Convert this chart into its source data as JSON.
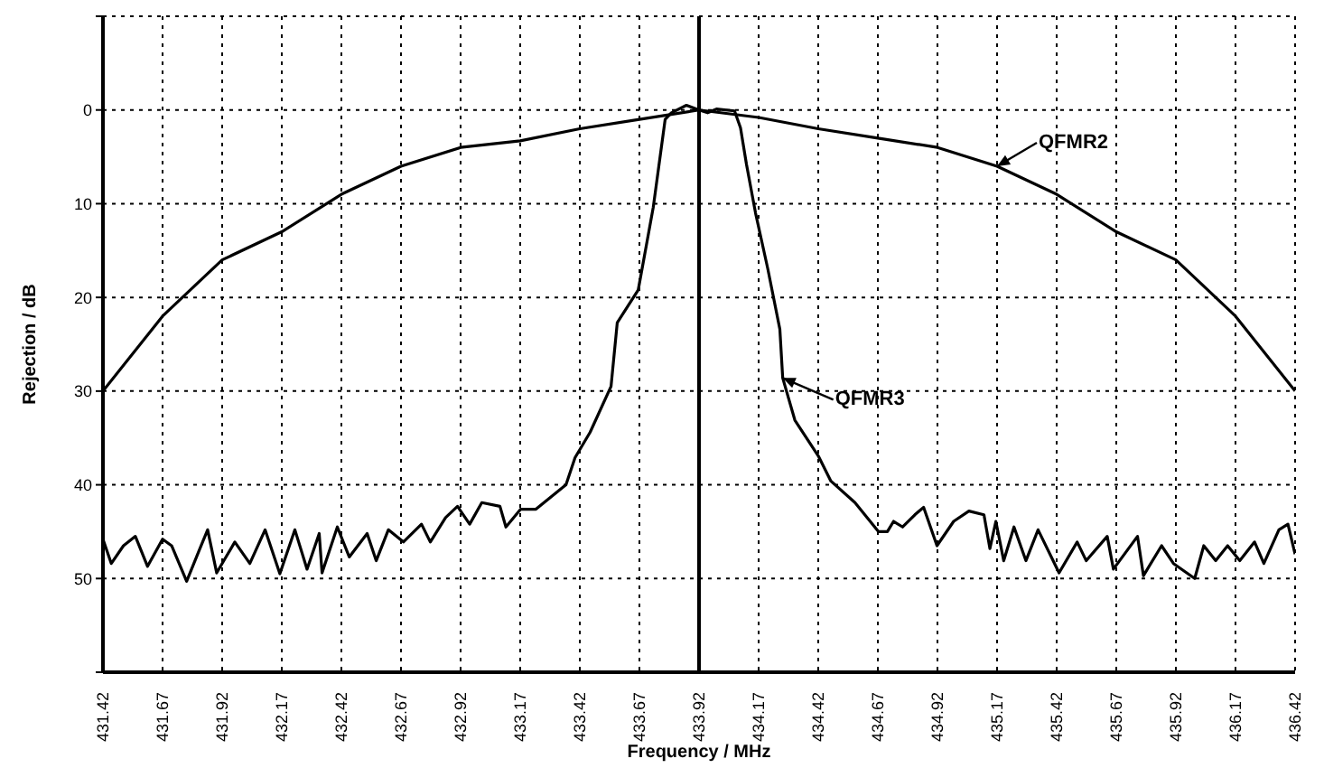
{
  "chart_data": {
    "type": "line",
    "xlabel": "Frequency / MHz",
    "ylabel": "Rejection / dB",
    "xlim": [
      431.42,
      436.42
    ],
    "xticks": [
      431.42,
      431.67,
      431.92,
      432.17,
      432.42,
      432.67,
      432.92,
      433.17,
      433.42,
      433.67,
      433.92,
      434.17,
      434.42,
      434.67,
      434.92,
      435.17,
      435.42,
      435.67,
      435.92,
      436.17,
      436.42
    ],
    "ylim": [
      60,
      -10
    ],
    "yticks": [
      {
        "value": -10,
        "label": null
      },
      0,
      10,
      20,
      30,
      40,
      50,
      {
        "value": 60,
        "label": null
      }
    ],
    "grid": true,
    "legend": "right",
    "marker": "none",
    "line_style": "solid",
    "ref_lines": [
      {
        "axis": "x",
        "value": 433.92,
        "color": "#000000"
      }
    ],
    "series": [
      {
        "name": "QFMR2",
        "color": "#000000",
        "x": [
          431.42,
          431.67,
          431.92,
          432.17,
          432.42,
          432.67,
          432.92,
          433.17,
          433.42,
          433.67,
          433.92,
          434.17,
          434.42,
          434.67,
          434.92,
          435.17,
          435.42,
          435.67,
          435.92,
          436.17,
          436.42
        ],
        "values": [
          30,
          22,
          16,
          13,
          9,
          6,
          4,
          3.3,
          2,
          1,
          0,
          0.8,
          2,
          3,
          4,
          6,
          9,
          13,
          16,
          22,
          30
        ]
      },
      {
        "name": "QFMR3",
        "color": "#000000",
        "x": [
          431.42,
          431.455,
          431.506,
          431.556,
          431.607,
          431.67,
          431.708,
          431.771,
          431.822,
          431.859,
          431.897,
          431.973,
          432.036,
          432.1,
          432.162,
          432.225,
          432.276,
          432.327,
          432.339,
          432.403,
          432.453,
          432.528,
          432.566,
          432.617,
          432.68,
          432.756,
          432.793,
          432.857,
          432.907,
          432.958,
          433.009,
          433.085,
          433.11,
          433.172,
          433.236,
          433.362,
          433.4,
          433.463,
          433.551,
          433.577,
          433.665,
          433.728,
          433.778,
          433.804,
          433.867,
          433.92,
          433.956,
          433.993,
          434.069,
          434.094,
          434.119,
          434.157,
          434.208,
          434.259,
          434.271,
          434.322,
          434.422,
          434.473,
          434.574,
          434.673,
          434.71,
          434.736,
          434.774,
          434.825,
          434.862,
          434.918,
          434.988,
          435.052,
          435.115,
          435.14,
          435.165,
          435.198,
          435.241,
          435.291,
          435.342,
          435.43,
          435.506,
          435.544,
          435.632,
          435.658,
          435.759,
          435.784,
          435.86,
          435.91,
          435.999,
          436.037,
          436.087,
          436.137,
          436.188,
          436.25,
          436.289,
          436.352,
          436.39,
          436.42
        ],
        "values": [
          45.8,
          48.4,
          46.5,
          45.5,
          48.7,
          45.8,
          46.5,
          50.3,
          47.1,
          44.8,
          49.4,
          46.1,
          48.4,
          44.8,
          49.5,
          44.8,
          49,
          45.2,
          49.4,
          44.5,
          47.7,
          45.2,
          48.1,
          44.8,
          46.1,
          44.2,
          46.1,
          43.5,
          42.3,
          44.2,
          41.9,
          42.3,
          44.5,
          42.6,
          42.6,
          40,
          37.1,
          34.4,
          29.5,
          22.7,
          19.2,
          10.4,
          1,
          0.3,
          -0.5,
          0,
          0.3,
          -0.1,
          0.1,
          1.9,
          5.8,
          11,
          16.9,
          23.4,
          28.6,
          33.1,
          37,
          39.6,
          41.9,
          45,
          45,
          43.9,
          44.5,
          43.2,
          42.4,
          46.5,
          43.9,
          42.8,
          43.2,
          46.8,
          43.9,
          48.1,
          44.5,
          48.1,
          44.8,
          49.4,
          46.1,
          48.1,
          45.5,
          49,
          45.5,
          49.7,
          46.5,
          48.4,
          50,
          46.5,
          48.1,
          46.5,
          48.1,
          46.1,
          48.4,
          44.8,
          44.2,
          47.4
        ]
      }
    ]
  }
}
